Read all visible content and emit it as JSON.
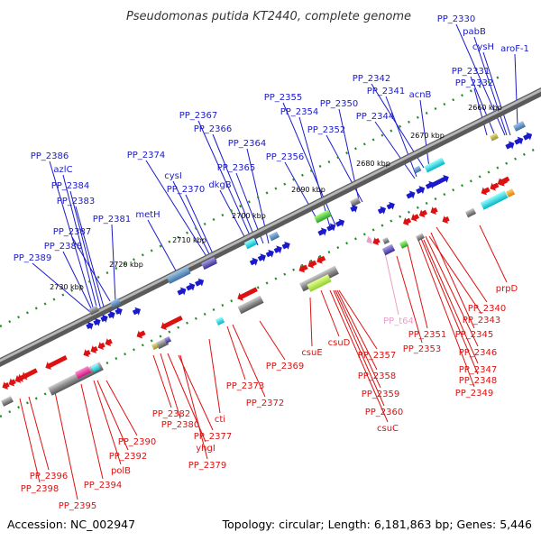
{
  "title": "Pseudomonas putida KT2440, complete genome",
  "footer": {
    "accession": "Accession: NC_002947",
    "topology": "Topology: circular; Length: 6,181,863 bp; Genes: 5,446"
  },
  "colors": {
    "forward_gene": "#1a1acc",
    "reverse_gene": "#dd1111",
    "trna_gene": "#e9a0c8",
    "backbone": "#7a7a7a",
    "dotted_line": "#2b8a2b"
  },
  "ticks": [
    "2660 kbp",
    "2670 kbp",
    "2680 kbp",
    "2690 kbp",
    "2700 kbp",
    "2710 kbp",
    "2720 kbp",
    "2730 kbp"
  ],
  "forward_genes": [
    "PP_2330",
    "pabB",
    "cysH",
    "aroF-1",
    "PP_2331",
    "PP_2332",
    "PP_2342",
    "acnB",
    "PP_2341",
    "PP_2355",
    "PP_2350",
    "PP_2354",
    "PP_2344",
    "PP_2367",
    "PP_2352",
    "PP_2366",
    "PP_2364",
    "PP_2386",
    "PP_2374",
    "PP_2356",
    "azlC",
    "cysI",
    "PP_2365",
    "PP_2384",
    "PP_2370",
    "dkgB",
    "PP_2383",
    "metH",
    "PP_2381",
    "PP_2387",
    "PP_2388",
    "PP_2389"
  ],
  "reverse_genes": [
    "prpD",
    "PP_2340",
    "PP_2343",
    "PP_2351",
    "PP_2345",
    "PP_2353",
    "PP_2346",
    "PP_2347",
    "PP_2348",
    "PP_2349",
    "csuE",
    "csuD",
    "PP_2357",
    "PP_2358",
    "PP_2359",
    "PP_2360",
    "csuC",
    "PP_2369",
    "PP_2373",
    "PP_2372",
    "PP_2382",
    "cti",
    "PP_2380",
    "PP_2377",
    "yhgI",
    "PP_2379",
    "PP_2390",
    "PP_2392",
    "polB",
    "PP_2394",
    "PP_2396",
    "PP_2398",
    "PP_2395"
  ],
  "trna_genes": [
    "PP_t64"
  ]
}
